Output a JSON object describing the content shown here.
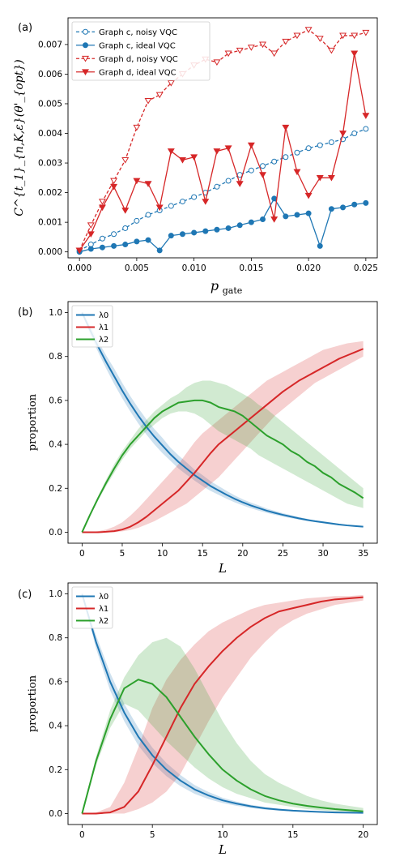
{
  "chart_data": [
    {
      "type": "line",
      "panel_label": "(a)",
      "xlabel_main": "p",
      "xlabel_sub": "gate",
      "ylabel": "C^{t_1}_{n,K,ε}(θ'_{opt})",
      "xlim": [
        -0.001,
        0.026
      ],
      "ylim": [
        -0.0002,
        0.0079
      ],
      "xticks": [
        0.0,
        0.005,
        0.01,
        0.015,
        0.02,
        0.025
      ],
      "xtick_labels": [
        "0.000",
        "0.005",
        "0.010",
        "0.015",
        "0.020",
        "0.025"
      ],
      "yticks": [
        0.0,
        0.001,
        0.002,
        0.003,
        0.004,
        0.005,
        0.006,
        0.007
      ],
      "ytick_labels": [
        "0.000",
        "0.001",
        "0.002",
        "0.003",
        "0.004",
        "0.005",
        "0.006",
        "0.007"
      ],
      "legend_position": "top-left",
      "x": [
        0.0,
        0.001,
        0.002,
        0.003,
        0.004,
        0.005,
        0.006,
        0.007,
        0.008,
        0.009,
        0.01,
        0.011,
        0.012,
        0.013,
        0.014,
        0.015,
        0.016,
        0.017,
        0.018,
        0.019,
        0.02,
        0.021,
        0.022,
        0.023,
        0.024,
        0.025
      ],
      "series": [
        {
          "name": "Graph c, noisy VQC",
          "color": "#1f77b4",
          "linestyle": "dashed",
          "marker": "open-circle",
          "values": [
            5e-05,
            0.00025,
            0.00045,
            0.0006,
            0.0008,
            0.00105,
            0.00125,
            0.0014,
            0.00155,
            0.0017,
            0.00185,
            0.002,
            0.0022,
            0.0024,
            0.0026,
            0.00275,
            0.0029,
            0.00305,
            0.0032,
            0.00335,
            0.0035,
            0.0036,
            0.0037,
            0.0038,
            0.004,
            0.00415
          ]
        },
        {
          "name": "Graph c, ideal VQC",
          "color": "#1f77b4",
          "linestyle": "solid",
          "marker": "filled-circle",
          "values": [
            0.0,
            0.0001,
            0.00015,
            0.0002,
            0.00025,
            0.00035,
            0.0004,
            5e-05,
            0.00055,
            0.0006,
            0.00065,
            0.0007,
            0.00075,
            0.0008,
            0.0009,
            0.001,
            0.0011,
            0.0018,
            0.0012,
            0.00125,
            0.0013,
            0.0002,
            0.00145,
            0.0015,
            0.0016,
            0.00165
          ]
        },
        {
          "name": "Graph d, noisy VQC",
          "color": "#d62728",
          "linestyle": "dashed",
          "marker": "open-triangle-down",
          "values": [
            5e-05,
            0.0009,
            0.0017,
            0.0024,
            0.0031,
            0.0042,
            0.0051,
            0.0053,
            0.0057,
            0.006,
            0.0063,
            0.0065,
            0.0064,
            0.0067,
            0.0068,
            0.0069,
            0.007,
            0.0067,
            0.0071,
            0.0073,
            0.0075,
            0.0072,
            0.0068,
            0.0073,
            0.0073,
            0.0074
          ]
        },
        {
          "name": "Graph d, ideal VQC",
          "color": "#d62728",
          "linestyle": "solid",
          "marker": "filled-triangle-down",
          "values": [
            5e-05,
            0.0006,
            0.0015,
            0.0022,
            0.0014,
            0.0024,
            0.0023,
            0.0015,
            0.0034,
            0.0031,
            0.0032,
            0.0017,
            0.0034,
            0.0035,
            0.0023,
            0.0036,
            0.0026,
            0.0011,
            0.0042,
            0.0027,
            0.0019,
            0.0025,
            0.0025,
            0.004,
            0.0067,
            0.0046
          ]
        }
      ]
    },
    {
      "type": "line",
      "panel_label": "(b)",
      "xlabel": "L",
      "ylabel": "proportion",
      "xlim": [
        -1.75,
        36.75
      ],
      "ylim": [
        -0.05,
        1.05
      ],
      "xticks": [
        0,
        5,
        10,
        15,
        20,
        25,
        30,
        35
      ],
      "yticks": [
        0.0,
        0.2,
        0.4,
        0.6,
        0.8,
        1.0
      ],
      "ytick_labels": [
        "0.0",
        "0.2",
        "0.4",
        "0.6",
        "0.8",
        "1.0"
      ],
      "legend_position": "top-left",
      "x": [
        0,
        1,
        2,
        3,
        4,
        5,
        6,
        7,
        8,
        9,
        10,
        11,
        12,
        13,
        14,
        15,
        16,
        17,
        18,
        19,
        20,
        21,
        22,
        23,
        24,
        25,
        26,
        27,
        28,
        29,
        30,
        31,
        32,
        33,
        34,
        35
      ],
      "series": [
        {
          "name": "λ0",
          "color": "#1f77b4",
          "values": [
            1.0,
            0.92,
            0.845,
            0.775,
            0.71,
            0.645,
            0.585,
            0.53,
            0.48,
            0.435,
            0.395,
            0.355,
            0.32,
            0.29,
            0.26,
            0.235,
            0.21,
            0.19,
            0.17,
            0.152,
            0.136,
            0.122,
            0.11,
            0.098,
            0.088,
            0.079,
            0.071,
            0.063,
            0.056,
            0.05,
            0.045,
            0.04,
            0.035,
            0.031,
            0.028,
            0.025
          ],
          "band_lower": [
            1.0,
            0.9,
            0.82,
            0.745,
            0.675,
            0.61,
            0.55,
            0.495,
            0.445,
            0.4,
            0.36,
            0.325,
            0.29,
            0.262,
            0.235,
            0.21,
            0.188,
            0.17,
            0.152,
            0.136,
            0.122,
            0.109,
            0.098,
            0.088,
            0.079,
            0.071,
            0.064,
            0.057,
            0.051,
            0.046,
            0.041,
            0.036,
            0.032,
            0.029,
            0.026,
            0.023
          ],
          "band_upper": [
            1.0,
            0.94,
            0.87,
            0.805,
            0.745,
            0.68,
            0.62,
            0.565,
            0.515,
            0.47,
            0.43,
            0.385,
            0.35,
            0.318,
            0.285,
            0.26,
            0.232,
            0.21,
            0.188,
            0.168,
            0.15,
            0.135,
            0.122,
            0.108,
            0.097,
            0.087,
            0.078,
            0.069,
            0.061,
            0.054,
            0.049,
            0.044,
            0.038,
            0.033,
            0.03,
            0.027
          ]
        },
        {
          "name": "λ1",
          "color": "#d62728",
          "values": [
            0.0,
            0.0,
            0.0,
            0.002,
            0.005,
            0.012,
            0.025,
            0.045,
            0.07,
            0.1,
            0.13,
            0.16,
            0.19,
            0.23,
            0.27,
            0.315,
            0.36,
            0.4,
            0.43,
            0.46,
            0.49,
            0.52,
            0.55,
            0.58,
            0.61,
            0.64,
            0.665,
            0.69,
            0.71,
            0.73,
            0.75,
            0.77,
            0.79,
            0.805,
            0.82,
            0.835
          ],
          "band_lower": [
            0.0,
            0.0,
            0.0,
            0.0,
            0.0,
            0.004,
            0.01,
            0.02,
            0.035,
            0.05,
            0.07,
            0.09,
            0.11,
            0.13,
            0.16,
            0.19,
            0.22,
            0.25,
            0.29,
            0.33,
            0.37,
            0.41,
            0.45,
            0.49,
            0.53,
            0.56,
            0.59,
            0.62,
            0.65,
            0.68,
            0.7,
            0.72,
            0.74,
            0.76,
            0.78,
            0.8
          ],
          "band_upper": [
            0.0,
            0.0,
            0.005,
            0.012,
            0.025,
            0.045,
            0.075,
            0.11,
            0.15,
            0.19,
            0.23,
            0.27,
            0.31,
            0.36,
            0.41,
            0.45,
            0.48,
            0.51,
            0.54,
            0.57,
            0.6,
            0.63,
            0.66,
            0.69,
            0.71,
            0.73,
            0.75,
            0.77,
            0.79,
            0.81,
            0.83,
            0.84,
            0.85,
            0.86,
            0.865,
            0.87
          ]
        },
        {
          "name": "λ2",
          "color": "#2ca02c",
          "values": [
            0.0,
            0.08,
            0.155,
            0.225,
            0.29,
            0.35,
            0.4,
            0.44,
            0.48,
            0.52,
            0.55,
            0.57,
            0.59,
            0.595,
            0.6,
            0.6,
            0.59,
            0.57,
            0.56,
            0.55,
            0.53,
            0.5,
            0.47,
            0.44,
            0.42,
            0.4,
            0.37,
            0.35,
            0.32,
            0.3,
            0.27,
            0.25,
            0.22,
            0.2,
            0.18,
            0.155
          ],
          "band_lower": [
            0.0,
            0.075,
            0.145,
            0.21,
            0.27,
            0.33,
            0.38,
            0.42,
            0.46,
            0.49,
            0.52,
            0.54,
            0.55,
            0.55,
            0.54,
            0.52,
            0.49,
            0.46,
            0.44,
            0.42,
            0.4,
            0.38,
            0.35,
            0.33,
            0.31,
            0.29,
            0.27,
            0.25,
            0.23,
            0.21,
            0.19,
            0.17,
            0.15,
            0.13,
            0.12,
            0.11
          ],
          "band_upper": [
            0.0,
            0.085,
            0.165,
            0.24,
            0.31,
            0.37,
            0.42,
            0.47,
            0.51,
            0.55,
            0.58,
            0.61,
            0.63,
            0.66,
            0.68,
            0.69,
            0.69,
            0.68,
            0.67,
            0.65,
            0.63,
            0.61,
            0.58,
            0.56,
            0.53,
            0.5,
            0.47,
            0.44,
            0.41,
            0.38,
            0.35,
            0.32,
            0.29,
            0.26,
            0.23,
            0.2
          ]
        }
      ]
    },
    {
      "type": "line",
      "panel_label": "(c)",
      "xlabel": "L",
      "ylabel": "proportion",
      "xlim": [
        -1.0,
        21.0
      ],
      "ylim": [
        -0.05,
        1.05
      ],
      "xticks": [
        0,
        5,
        10,
        15,
        20
      ],
      "yticks": [
        0.0,
        0.2,
        0.4,
        0.6,
        0.8,
        1.0
      ],
      "ytick_labels": [
        "0.0",
        "0.2",
        "0.4",
        "0.6",
        "0.8",
        "1.0"
      ],
      "legend_position": "top-left",
      "x": [
        0,
        1,
        2,
        3,
        4,
        5,
        6,
        7,
        8,
        9,
        10,
        11,
        12,
        13,
        14,
        15,
        16,
        17,
        18,
        19,
        20
      ],
      "series": [
        {
          "name": "λ0",
          "color": "#1f77b4",
          "values": [
            1.0,
            0.78,
            0.6,
            0.46,
            0.35,
            0.265,
            0.2,
            0.15,
            0.11,
            0.082,
            0.06,
            0.045,
            0.033,
            0.024,
            0.018,
            0.013,
            0.01,
            0.007,
            0.005,
            0.004,
            0.003
          ],
          "band_lower": [
            1.0,
            0.75,
            0.56,
            0.42,
            0.31,
            0.23,
            0.17,
            0.125,
            0.09,
            0.066,
            0.048,
            0.035,
            0.025,
            0.018,
            0.013,
            0.01,
            0.007,
            0.005,
            0.004,
            0.003,
            0.002
          ],
          "band_upper": [
            1.0,
            0.81,
            0.64,
            0.5,
            0.39,
            0.3,
            0.23,
            0.175,
            0.13,
            0.098,
            0.072,
            0.054,
            0.04,
            0.03,
            0.022,
            0.016,
            0.012,
            0.009,
            0.006,
            0.005,
            0.004
          ]
        },
        {
          "name": "λ1",
          "color": "#d62728",
          "values": [
            0.0,
            0.0,
            0.005,
            0.03,
            0.1,
            0.22,
            0.35,
            0.48,
            0.59,
            0.67,
            0.74,
            0.8,
            0.85,
            0.89,
            0.92,
            0.935,
            0.95,
            0.965,
            0.975,
            0.98,
            0.985
          ],
          "band_lower": [
            0.0,
            0.0,
            0.0,
            0.0,
            0.02,
            0.05,
            0.1,
            0.18,
            0.3,
            0.42,
            0.53,
            0.62,
            0.71,
            0.78,
            0.84,
            0.88,
            0.91,
            0.93,
            0.95,
            0.96,
            0.97
          ],
          "band_upper": [
            0.0,
            0.005,
            0.03,
            0.14,
            0.3,
            0.48,
            0.61,
            0.7,
            0.77,
            0.83,
            0.87,
            0.9,
            0.93,
            0.95,
            0.96,
            0.97,
            0.98,
            0.985,
            0.99,
            0.99,
            0.995
          ]
        },
        {
          "name": "λ2",
          "color": "#2ca02c",
          "values": [
            0.0,
            0.24,
            0.43,
            0.57,
            0.61,
            0.59,
            0.53,
            0.44,
            0.35,
            0.27,
            0.2,
            0.15,
            0.11,
            0.08,
            0.06,
            0.045,
            0.035,
            0.027,
            0.02,
            0.015,
            0.01
          ],
          "band_lower": [
            0.0,
            0.22,
            0.39,
            0.5,
            0.47,
            0.4,
            0.33,
            0.27,
            0.21,
            0.16,
            0.12,
            0.09,
            0.07,
            0.05,
            0.04,
            0.03,
            0.02,
            0.015,
            0.01,
            0.008,
            0.006
          ],
          "band_upper": [
            0.0,
            0.26,
            0.47,
            0.62,
            0.72,
            0.78,
            0.8,
            0.76,
            0.66,
            0.54,
            0.42,
            0.32,
            0.24,
            0.18,
            0.14,
            0.11,
            0.08,
            0.06,
            0.045,
            0.035,
            0.025
          ]
        }
      ]
    }
  ]
}
